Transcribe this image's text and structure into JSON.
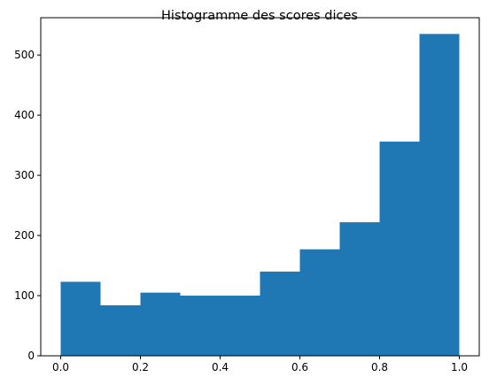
{
  "chart_data": {
    "type": "bar",
    "title": "Histogramme des scores dices",
    "xlabel": "",
    "ylabel": "",
    "bin_edges": [
      0.0,
      0.1,
      0.2,
      0.3,
      0.4,
      0.5,
      0.6,
      0.7,
      0.8,
      0.9,
      1.0
    ],
    "values": [
      123,
      84,
      105,
      100,
      100,
      140,
      177,
      222,
      356,
      535
    ],
    "xlim": [
      -0.05,
      1.05
    ],
    "ylim": [
      0,
      562
    ],
    "xticks": [
      0.0,
      0.2,
      0.4,
      0.6,
      0.8,
      1.0
    ],
    "xtick_labels": [
      "0.0",
      "0.2",
      "0.4",
      "0.6",
      "0.8",
      "1.0"
    ],
    "yticks": [
      0,
      100,
      200,
      300,
      400,
      500
    ],
    "ytick_labels": [
      "0",
      "100",
      "200",
      "300",
      "400",
      "500"
    ],
    "bar_color": "#1f77b4",
    "grid": false,
    "legend": "none"
  }
}
